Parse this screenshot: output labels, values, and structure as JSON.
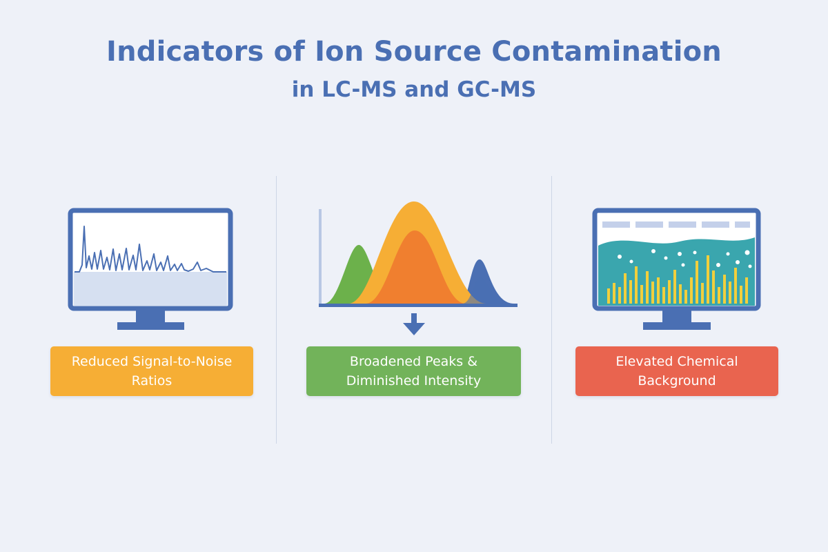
{
  "header": {
    "title": "Indicators of Ion Source Contamination",
    "subtitle": "in LC-MS and GC-MS"
  },
  "panels": [
    {
      "icon": "monitor-noisy-spectrum-icon",
      "label": "Reduced Signal-to-Noise\nRatios",
      "color": "#f6ae35"
    },
    {
      "icon": "broadened-peaks-chart-icon",
      "label": "Broadened Peaks &\nDiminished Intensity",
      "color": "#72b35a"
    },
    {
      "icon": "monitor-chemical-background-icon",
      "label": "Elevated Chemical\nBackground",
      "color": "#e9644f"
    }
  ],
  "colors": {
    "title": "#4a6fb3",
    "background": "#eef1f8",
    "monitor_frame": "#4a6fb3",
    "peak_green": "#6cb14b",
    "peak_orange": "#f39a2e",
    "peak_blue": "#4a6fb3",
    "bar_yellow": "#f2cf3c",
    "band_teal": "#3aa6ae"
  }
}
